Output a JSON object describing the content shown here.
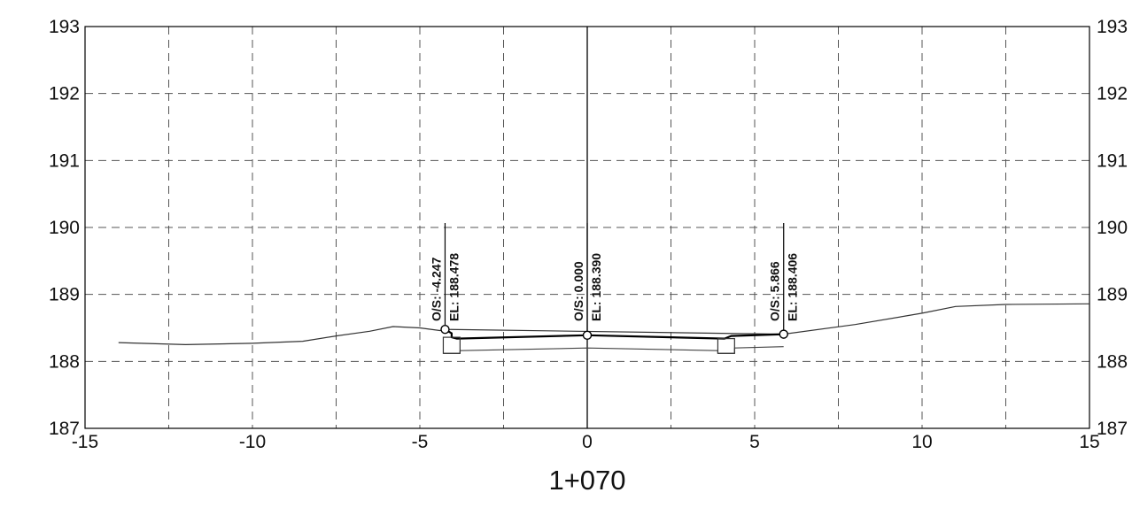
{
  "chart_data": {
    "type": "line",
    "title": "1+070",
    "xlim": [
      -15,
      15
    ],
    "ylim": [
      187,
      193
    ],
    "x_ticks": [
      -15,
      -10,
      -5,
      0,
      5,
      10,
      15
    ],
    "x_tick_labels": [
      "-15",
      "-10",
      "-5",
      "0",
      "5",
      "10",
      "15"
    ],
    "y_ticks": [
      187,
      188,
      189,
      190,
      191,
      192,
      193
    ],
    "y_tick_labels": [
      "187",
      "188",
      "189",
      "190",
      "191",
      "192",
      "193"
    ],
    "right_y_tick_labels": [
      "187",
      "188",
      "189",
      "190",
      "191",
      "192",
      "193"
    ],
    "grid": true,
    "grid_x": [
      -12.5,
      -10,
      -7.5,
      -5,
      -2.5,
      2.5,
      5,
      7.5,
      10,
      12.5
    ],
    "grid_y": [
      188,
      189,
      190,
      191,
      192
    ],
    "centerline_x": 0,
    "series": [
      {
        "key": "existing-ground",
        "points": [
          [
            -14,
            188.28
          ],
          [
            -12,
            188.25
          ],
          [
            -10,
            188.27
          ],
          [
            -8.5,
            188.3
          ],
          [
            -7.5,
            188.38
          ],
          [
            -6.5,
            188.45
          ],
          [
            -5.8,
            188.52
          ],
          [
            -5,
            188.5
          ],
          [
            -4.4,
            188.46
          ],
          [
            -4.25,
            188.478
          ],
          [
            5.866,
            188.406
          ],
          [
            8,
            188.55
          ],
          [
            10,
            188.72
          ],
          [
            11,
            188.82
          ],
          [
            12.5,
            188.85
          ],
          [
            15,
            188.86
          ]
        ]
      },
      {
        "key": "finished-surface",
        "points": [
          [
            -4.25,
            188.478
          ],
          [
            -4.05,
            188.42
          ],
          [
            -4.05,
            188.36
          ],
          [
            -3.9,
            188.34
          ],
          [
            0,
            188.39
          ],
          [
            4.1,
            188.34
          ],
          [
            4.3,
            188.38
          ],
          [
            5.866,
            188.406
          ]
        ]
      },
      {
        "key": "subgrade",
        "points": [
          [
            -4.3,
            188.12
          ],
          [
            -3.8,
            188.12
          ],
          [
            -3.8,
            188.16
          ],
          [
            0,
            188.2
          ],
          [
            3.9,
            188.16
          ],
          [
            3.9,
            188.12
          ],
          [
            4.4,
            188.12
          ],
          [
            4.4,
            188.2
          ],
          [
            5.866,
            188.22
          ]
        ]
      }
    ],
    "boxes": [
      {
        "key": "left-curb",
        "x0": -4.3,
        "x1": -3.8,
        "y0": 188.12,
        "y1": 188.36
      },
      {
        "key": "right-curb",
        "x0": 3.9,
        "x1": 4.4,
        "y0": 188.12,
        "y1": 188.34
      }
    ],
    "points": [
      {
        "key": "left-edge",
        "offset": -4.247,
        "elevation": 188.478,
        "os_label": "O/S: -4.247",
        "el_label": "EL: 188.478"
      },
      {
        "key": "center",
        "offset": 0.0,
        "elevation": 188.39,
        "os_label": "O/S: 0.000",
        "el_label": "EL: 188.390"
      },
      {
        "key": "right-edge",
        "offset": 5.866,
        "elevation": 188.406,
        "os_label": "O/S: 5.866",
        "el_label": "EL: 188.406"
      }
    ]
  }
}
